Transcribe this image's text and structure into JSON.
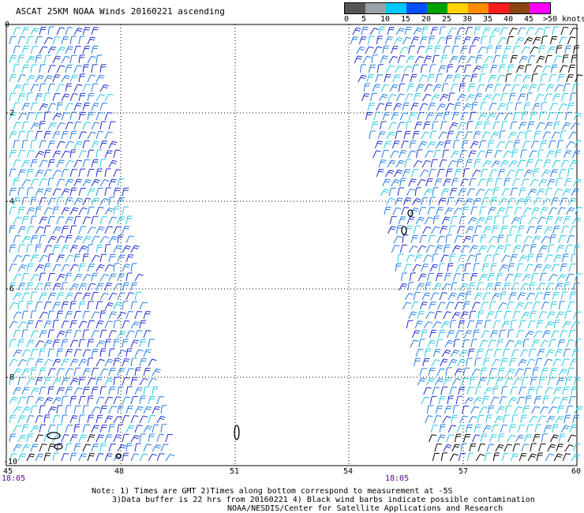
{
  "title": "ASCAT 25KM NOAA Winds 20160221 ascending",
  "legend": {
    "labels": [
      "0",
      "5",
      "10",
      "15",
      "20",
      "25",
      "30",
      "35",
      "40",
      "45",
      ">50 knots"
    ],
    "colors": [
      "#555555",
      "#9aa3aa",
      "#00c8ff",
      "#0050ff",
      "#00a000",
      "#ffd200",
      "#ff8c00",
      "#ff1e1e",
      "#8b4513",
      "#ff00ff",
      "#8a00ff"
    ]
  },
  "axes": {
    "lon_labels": [
      "45",
      "48",
      "51",
      "54",
      "57",
      "60"
    ],
    "lat_labels": [
      "0",
      "-2",
      "-4",
      "-6",
      "-8",
      "-10"
    ]
  },
  "times": {
    "left": "18:05",
    "right": "18:05"
  },
  "notes": {
    "line1": "Note: 1) Times are GMT 2)Times along bottom correspond to measurement at -5S",
    "line2": "3)Data buffer is 22 hrs from 20160221 4) Black wind barbs indicate possible contamination",
    "line3": "NOAA/NESDIS/Center for Satellite Applications and Research"
  },
  "colors": {
    "barb_dark": "#1a2ad0",
    "barb_mid": "#1e7be6",
    "barb_light": "#22c6e8",
    "contam": "#000000",
    "land": "#000000"
  }
}
